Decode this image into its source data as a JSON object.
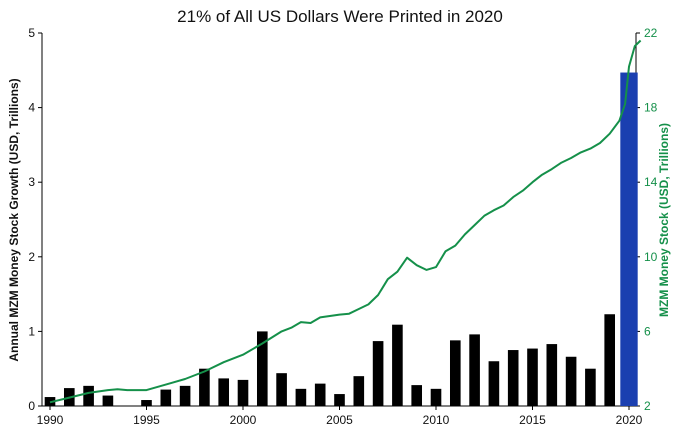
{
  "chart_data": {
    "type": "bar",
    "title": "21% of All US Dollars Were Printed in 2020",
    "ylabel": "Annual MZM Money Stock Growth (USD, Trillions)",
    "y2label": "MZM Money Stock (USD, Trillions)",
    "xlim": [
      1990,
      2020
    ],
    "ylim": [
      0,
      5
    ],
    "y2lim": [
      2,
      22
    ],
    "x_ticks": [
      "1990",
      "1995",
      "2000",
      "2005",
      "2010",
      "2015",
      "2020"
    ],
    "y_ticks": [
      "0",
      "1",
      "2",
      "3",
      "4",
      "5"
    ],
    "y2_ticks": [
      "2",
      "6",
      "10",
      "14",
      "18",
      "22"
    ],
    "series": [
      {
        "type": "bar",
        "axis": "left",
        "color": "#000000",
        "highlight_color": "#1a3fb0",
        "x": [
          1990,
          1991,
          1992,
          1993,
          1994,
          1995,
          1996,
          1997,
          1998,
          1999,
          2000,
          2001,
          2002,
          2003,
          2004,
          2005,
          2006,
          2007,
          2008,
          2009,
          2010,
          2011,
          2012,
          2013,
          2014,
          2015,
          2016,
          2017,
          2018,
          2019,
          2020
        ],
        "values": [
          0.12,
          0.24,
          0.27,
          0.14,
          0.0,
          0.08,
          0.22,
          0.27,
          0.5,
          0.37,
          0.35,
          1.0,
          0.44,
          0.23,
          0.3,
          0.16,
          0.4,
          0.87,
          1.09,
          0.28,
          0.23,
          0.88,
          0.96,
          0.6,
          0.75,
          0.77,
          0.83,
          0.66,
          0.5,
          1.23,
          4.47
        ],
        "highlight_x": 2020
      },
      {
        "type": "line",
        "axis": "right",
        "color": "#15904a",
        "x": [
          1990,
          1991,
          1992,
          1993,
          1993.5,
          1994,
          1995,
          1996,
          1997,
          1998,
          1999,
          2000,
          2001,
          2002,
          2002.5,
          2003,
          2003.5,
          2004,
          2005,
          2005.5,
          2006,
          2006.5,
          2007,
          2007.5,
          2008,
          2008.5,
          2009,
          2009.5,
          2010,
          2010.5,
          2011,
          2011.5,
          2012,
          2012.5,
          2013,
          2013.5,
          2014,
          2014.5,
          2015,
          2015.5,
          2016,
          2016.5,
          2017,
          2017.5,
          2018,
          2018.5,
          2019,
          2019.5,
          2019.8,
          2020,
          2020.3,
          2020.6
        ],
        "values": [
          2.2,
          2.45,
          2.7,
          2.85,
          2.9,
          2.85,
          2.85,
          3.15,
          3.45,
          3.85,
          4.35,
          4.75,
          5.35,
          6.0,
          6.2,
          6.5,
          6.45,
          6.75,
          6.9,
          6.95,
          7.2,
          7.45,
          7.95,
          8.8,
          9.2,
          9.95,
          9.55,
          9.3,
          9.45,
          10.3,
          10.6,
          11.2,
          11.7,
          12.2,
          12.5,
          12.75,
          13.2,
          13.55,
          14.0,
          14.4,
          14.7,
          15.05,
          15.3,
          15.6,
          15.8,
          16.1,
          16.6,
          17.3,
          18.2,
          20.2,
          21.3,
          21.6
        ]
      }
    ]
  }
}
